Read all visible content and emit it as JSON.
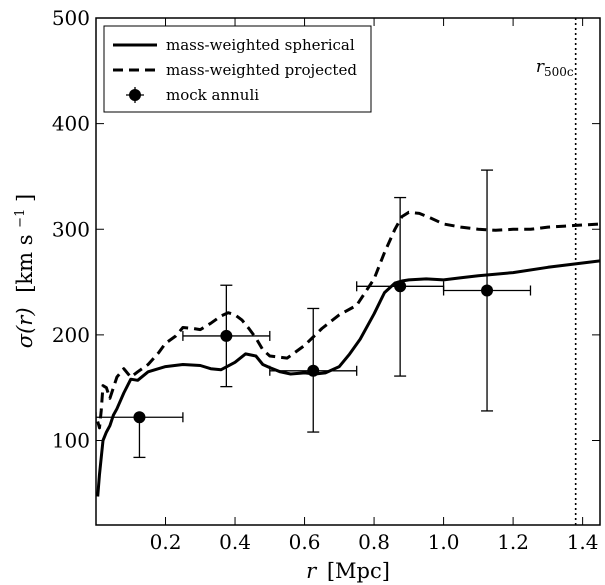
{
  "chart_data": {
    "type": "line",
    "title": "",
    "xlabel": "r",
    "xlabel_unit": "[Mpc]",
    "ylabel": "σ(r)",
    "ylabel_unit": "[km s",
    "ylabel_exp": "−1",
    "ylabel_close": "]",
    "xlim": [
      0.0,
      1.45
    ],
    "ylim": [
      20,
      500
    ],
    "xticks": [
      0.2,
      0.4,
      0.6,
      0.8,
      1.0,
      1.2,
      1.4
    ],
    "xtick_labels": [
      "0.2",
      "0.4",
      "0.6",
      "0.8",
      "1.0",
      "1.2",
      "1.4"
    ],
    "yticks": [
      100,
      200,
      300,
      400,
      500
    ],
    "ytick_labels": [
      "100",
      "200",
      "300",
      "400",
      "500"
    ],
    "grid": false,
    "legend_position": "top-left",
    "vline": {
      "x": 1.38,
      "label_main": "r",
      "label_sub": "500c"
    },
    "series": [
      {
        "name": "mass-weighted spherical",
        "style": "solid",
        "color": "#000000",
        "x": [
          0.005,
          0.01,
          0.02,
          0.03,
          0.04,
          0.05,
          0.06,
          0.08,
          0.1,
          0.12,
          0.15,
          0.2,
          0.25,
          0.3,
          0.33,
          0.36,
          0.4,
          0.43,
          0.46,
          0.48,
          0.5,
          0.53,
          0.56,
          0.6,
          0.63,
          0.66,
          0.7,
          0.73,
          0.76,
          0.8,
          0.83,
          0.86,
          0.88,
          0.9,
          0.95,
          1.0,
          1.05,
          1.1,
          1.2,
          1.3,
          1.4,
          1.45
        ],
        "y": [
          47,
          68,
          100,
          108,
          114,
          124,
          130,
          145,
          158,
          157,
          165,
          170,
          172,
          171,
          168,
          167,
          174,
          182,
          180,
          172,
          169,
          165,
          163,
          164,
          163,
          164,
          170,
          182,
          196,
          220,
          240,
          249,
          251,
          252,
          253,
          252,
          254,
          256,
          259,
          264,
          268,
          270
        ]
      },
      {
        "name": "mass-weighted projected",
        "style": "dashed",
        "color": "#000000",
        "x": [
          0.005,
          0.01,
          0.015,
          0.02,
          0.03,
          0.04,
          0.05,
          0.06,
          0.08,
          0.1,
          0.12,
          0.15,
          0.18,
          0.2,
          0.23,
          0.25,
          0.28,
          0.3,
          0.33,
          0.36,
          0.38,
          0.4,
          0.42,
          0.44,
          0.46,
          0.48,
          0.5,
          0.55,
          0.6,
          0.65,
          0.7,
          0.75,
          0.8,
          0.83,
          0.86,
          0.88,
          0.9,
          0.93,
          0.96,
          1.0,
          1.05,
          1.1,
          1.15,
          1.2,
          1.25,
          1.3,
          1.35,
          1.4,
          1.45
        ],
        "y": [
          118,
          112,
          128,
          152,
          150,
          140,
          150,
          160,
          168,
          160,
          165,
          172,
          183,
          192,
          199,
          207,
          206,
          205,
          211,
          218,
          221,
          219,
          214,
          206,
          197,
          186,
          180,
          178,
          190,
          206,
          219,
          228,
          253,
          278,
          300,
          312,
          316,
          315,
          311,
          305,
          302,
          300,
          299,
          300,
          300,
          302,
          303,
          304,
          305
        ]
      }
    ],
    "points": {
      "name": "mock annuli",
      "x": [
        0.125,
        0.375,
        0.625,
        0.875,
        1.125
      ],
      "y": [
        122,
        199,
        166,
        246,
        242
      ],
      "xerr": [
        0.125,
        0.125,
        0.125,
        0.125,
        0.125
      ],
      "yerr_low": [
        38,
        48,
        58,
        85,
        114
      ],
      "yerr_high": [
        0,
        48,
        59,
        84,
        114
      ]
    }
  }
}
